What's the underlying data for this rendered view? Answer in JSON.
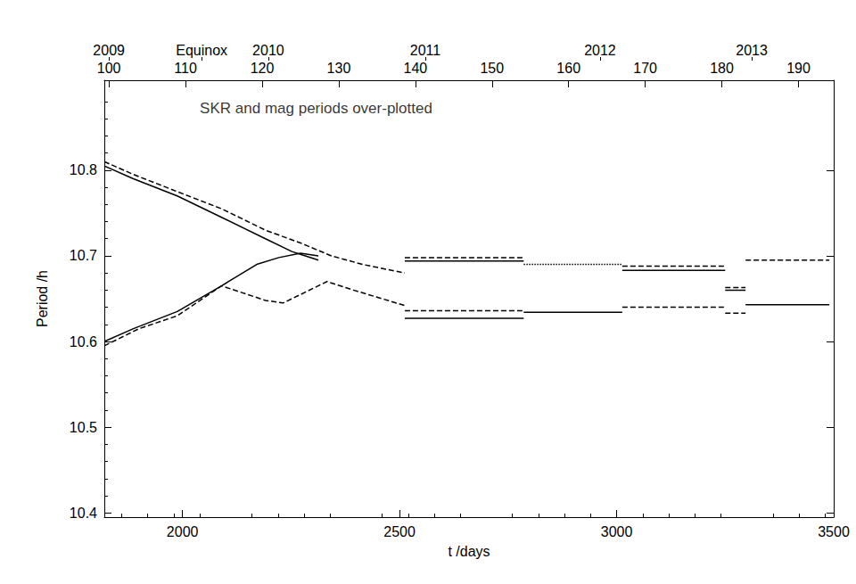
{
  "chart_data": {
    "type": "line",
    "x_label": "t /days",
    "y_label": "Period /h",
    "xlim": [
      1820,
      3500
    ],
    "xticks": [
      2000,
      2500,
      3000,
      3500
    ],
    "ylim": [
      10.395,
      10.905
    ],
    "yticks": [
      10.4,
      10.5,
      10.6,
      10.7,
      10.8
    ],
    "x2lim": [
      99.4,
      194.6
    ],
    "x2ticks": [
      100,
      110,
      120,
      130,
      140,
      150,
      160,
      170,
      180,
      190
    ],
    "x2_labels": [
      {
        "value": 100,
        "label": "2009"
      },
      {
        "value": 112.1,
        "label": "Equinox"
      },
      {
        "value": 120.8,
        "label": "2010"
      },
      {
        "value": 141.3,
        "label": "2011"
      },
      {
        "value": 164.1,
        "label": "2012"
      },
      {
        "value": 183.9,
        "label": "2013"
      }
    ],
    "grid": false,
    "annotations": [
      {
        "text": "SKR and mag periods over-plotted",
        "x": 2040,
        "y": 10.872
      }
    ],
    "series": [
      {
        "line_style": "solid",
        "color": "#000000",
        "x": [
          1820,
          1887,
          1988,
          2090,
          2191,
          2252,
          2283,
          2313
        ],
        "values": [
          10.805,
          10.79,
          10.77,
          10.745,
          10.72,
          10.705,
          10.7,
          10.695
        ]
      },
      {
        "line_style": "dashed",
        "color": "#000000",
        "x": [
          1820,
          1887,
          1988,
          2090,
          2191,
          2272,
          2343,
          2415,
          2512
        ],
        "values": [
          10.81,
          10.795,
          10.775,
          10.755,
          10.73,
          10.715,
          10.7,
          10.69,
          10.68
        ]
      },
      {
        "line_style": "solid",
        "color": "#000000",
        "x": [
          1820,
          1887,
          1988,
          2090,
          2171,
          2222,
          2272,
          2313
        ],
        "values": [
          10.6,
          10.615,
          10.635,
          10.665,
          10.69,
          10.698,
          10.703,
          10.7
        ]
      },
      {
        "line_style": "dashed",
        "color": "#000000",
        "x": [
          1820,
          1900,
          1988,
          2090,
          2191,
          2232,
          2333,
          2394,
          2512
        ],
        "values": [
          10.595,
          10.615,
          10.63,
          10.665,
          10.648,
          10.645,
          10.67,
          10.66,
          10.642
        ]
      },
      {
        "line_style": "solid",
        "color": "#000000",
        "x": [
          2512,
          2786,
          2786,
          2512,
          2786,
          2786,
          2786,
          3013,
          3013,
          3013,
          3250,
          3250,
          3250,
          3297,
          3297,
          3297,
          3490
        ],
        "values": [
          10.694,
          10.694,
          null,
          10.627,
          10.627,
          null,
          10.634,
          10.634,
          null,
          10.683,
          10.683,
          null,
          10.66,
          10.66,
          null,
          10.643,
          10.643
        ]
      },
      {
        "line_style": "dashed",
        "color": "#000000",
        "x": [
          2512,
          2786,
          2786,
          2512,
          2786,
          2786,
          3013,
          3250,
          3250,
          3013,
          3250,
          3250,
          3250,
          3297,
          3297,
          3250,
          3297,
          3297,
          3297,
          3490
        ],
        "values": [
          10.698,
          10.698,
          null,
          10.636,
          10.636,
          null,
          10.688,
          10.688,
          null,
          10.64,
          10.64,
          null,
          10.663,
          10.663,
          null,
          10.633,
          10.633,
          null,
          10.695,
          10.695
        ]
      },
      {
        "line_style": "dotted",
        "color": "#000000",
        "x": [
          2786,
          3013
        ],
        "values": [
          10.69,
          10.69
        ]
      }
    ]
  }
}
